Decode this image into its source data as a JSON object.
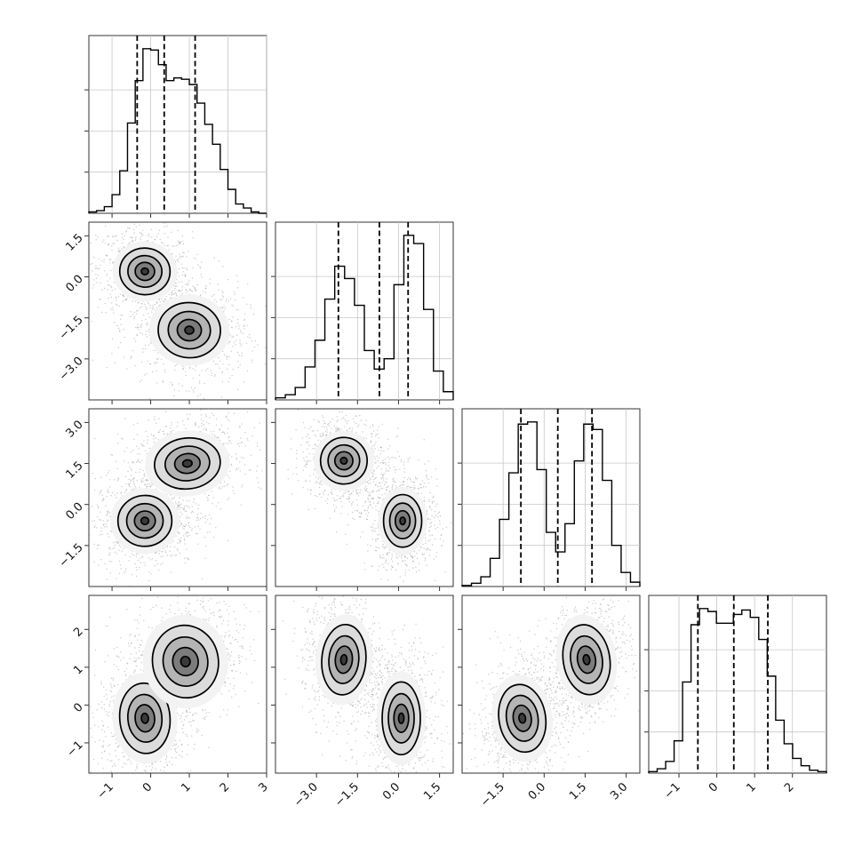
{
  "chart_data": {
    "type": "corner",
    "description_free": true,
    "parameters": 4,
    "axes": [
      {
        "lim": [
          -1.6,
          3.0
        ],
        "ticks": [
          -1,
          0,
          1,
          2,
          3
        ],
        "tick_labels": [
          "−1",
          "0",
          "1",
          "2",
          "3"
        ]
      },
      {
        "lim": [
          -4.5,
          2.0
        ],
        "ticks": [
          -3.0,
          -1.5,
          0.0,
          1.5
        ],
        "tick_labels": [
          "−3.0",
          "−1.5",
          "0.0",
          "1.5"
        ]
      },
      {
        "lim": [
          -3.0,
          3.5
        ],
        "ticks": [
          -1.5,
          0.0,
          1.5,
          3.0
        ],
        "tick_labels": [
          "−1.5",
          "0.0",
          "1.5",
          "3.0"
        ]
      },
      {
        "lim": [
          -1.8,
          2.9
        ],
        "ticks": [
          -1,
          0,
          1,
          2
        ],
        "tick_labels": [
          "−1",
          "0",
          "1",
          "2"
        ]
      }
    ],
    "histograms": [
      {
        "param": 0,
        "quantiles": [
          -0.35,
          0.35,
          1.15
        ],
        "counts": [
          1,
          2,
          5,
          14,
          32,
          68,
          100,
          124,
          123,
          112,
          100,
          102,
          101,
          97,
          83,
          67,
          52,
          33,
          18,
          7,
          4,
          1,
          0
        ]
      },
      {
        "param": 1,
        "quantiles": [
          -2.2,
          -0.7,
          0.35
        ],
        "counts": [
          2,
          5,
          12,
          32,
          58,
          98,
          130,
          118,
          92,
          48,
          30,
          40,
          112,
          160,
          152,
          88,
          28,
          8
        ]
      },
      {
        "param": 2,
        "quantiles": [
          -0.85,
          0.5,
          1.75
        ],
        "counts": [
          1,
          3,
          9,
          26,
          62,
          105,
          150,
          152,
          108,
          50,
          32,
          58,
          116,
          150,
          145,
          98,
          38,
          13,
          4
        ]
      },
      {
        "param": 3,
        "quantiles": [
          -0.5,
          0.45,
          1.35
        ],
        "counts": [
          1,
          3,
          8,
          22,
          62,
          101,
          112,
          110,
          102,
          102,
          108,
          111,
          106,
          91,
          66,
          36,
          20,
          10,
          5,
          2,
          1
        ]
      }
    ],
    "pairs": [
      {
        "x": 0,
        "y": 1,
        "clusters": [
          {
            "mx": -0.15,
            "my": 0.2,
            "sx": 0.42,
            "sy": 0.55,
            "rho": -0.1
          },
          {
            "mx": 1.0,
            "my": -1.95,
            "sx": 0.52,
            "sy": 0.65,
            "rho": -0.1
          }
        ]
      },
      {
        "x": 0,
        "y": 2,
        "clusters": [
          {
            "mx": -0.15,
            "my": -0.6,
            "sx": 0.45,
            "sy": 0.6,
            "rho": 0.05
          },
          {
            "mx": 0.95,
            "my": 1.5,
            "sx": 0.55,
            "sy": 0.6,
            "rho": 0.15
          }
        ]
      },
      {
        "x": 1,
        "y": 2,
        "clusters": [
          {
            "mx": -2.0,
            "my": 1.6,
            "sx": 0.55,
            "sy": 0.55,
            "rho": -0.1
          },
          {
            "mx": 0.15,
            "my": -0.6,
            "sx": 0.45,
            "sy": 0.62,
            "rho": 0.0
          }
        ]
      },
      {
        "x": 0,
        "y": 3,
        "clusters": [
          {
            "mx": -0.15,
            "my": -0.35,
            "sx": 0.42,
            "sy": 0.6,
            "rho": 0.1
          },
          {
            "mx": 0.9,
            "my": 1.15,
            "sx": 0.55,
            "sy": 0.62,
            "rho": 0.2
          }
        ]
      },
      {
        "x": 1,
        "y": 3,
        "clusters": [
          {
            "mx": -2.0,
            "my": 1.2,
            "sx": 0.52,
            "sy": 0.6,
            "rho": -0.1
          },
          {
            "mx": 0.1,
            "my": -0.35,
            "sx": 0.45,
            "sy": 0.62,
            "rho": 0.0
          }
        ]
      },
      {
        "x": 2,
        "y": 3,
        "clusters": [
          {
            "mx": -0.8,
            "my": -0.35,
            "sx": 0.55,
            "sy": 0.58,
            "rho": 0.2
          },
          {
            "mx": 1.55,
            "my": 1.2,
            "sx": 0.55,
            "sy": 0.6,
            "rho": 0.2
          }
        ]
      }
    ],
    "grid": true
  }
}
